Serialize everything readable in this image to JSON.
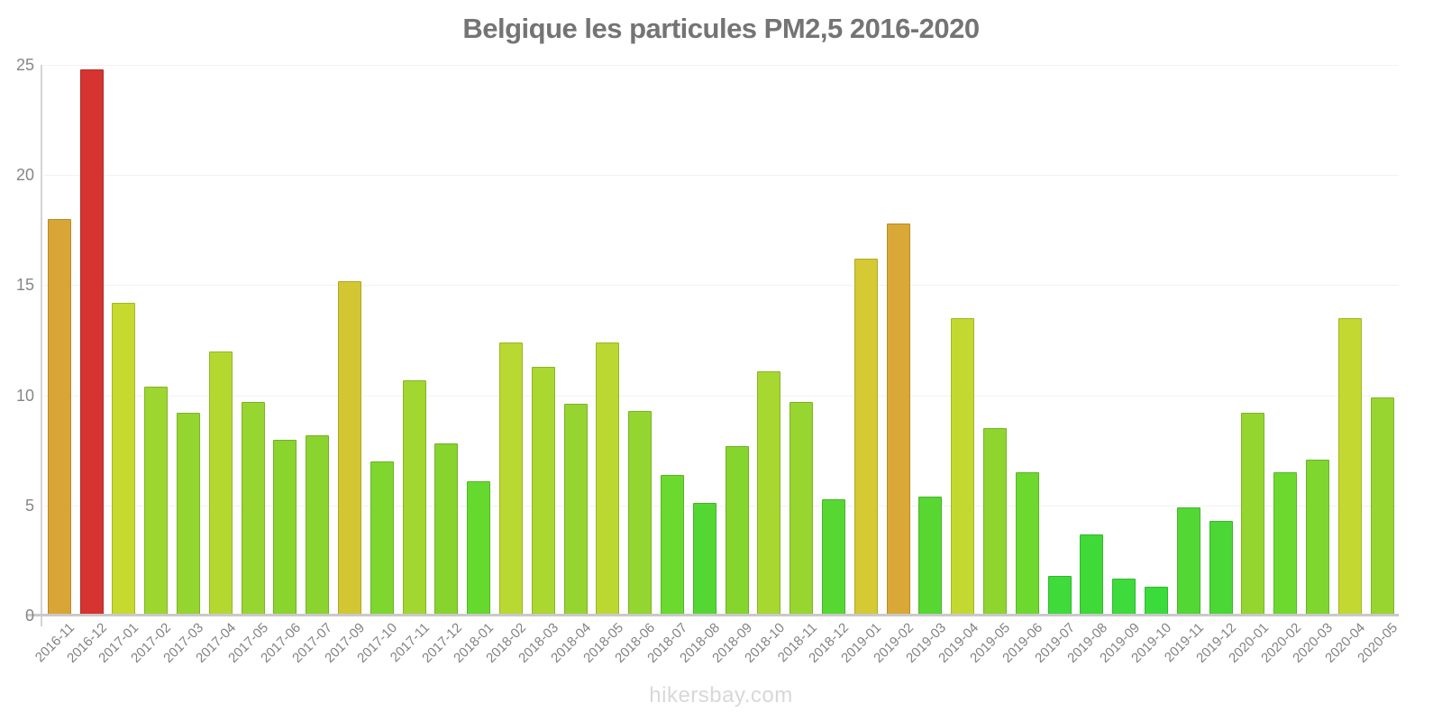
{
  "watermark": "hikersbay.com",
  "colors": {
    "title": "#747474",
    "axis_tick_label": "#868686",
    "x_tick_label": "#828282",
    "x_axis_line": "#c9c9c9",
    "y_axis_line": "#d4d4d4",
    "gridline": "#f2f2f2",
    "watermark": "#d8d8d8",
    "red_high": "#d63431",
    "orange": "#d9a636",
    "yellow": "#d4c833",
    "green_low": "#3edb3b"
  },
  "chart_data": {
    "type": "bar",
    "title": "Belgique les particules PM2,5 2016-2020",
    "xlabel": "",
    "ylabel": "",
    "ylim": [
      0,
      25
    ],
    "y_ticks": [
      0,
      5,
      10,
      15,
      20,
      25
    ],
    "grid": "horizontal",
    "legend": "none",
    "categories": [
      "2016-11",
      "2016-12",
      "2017-01",
      "2017-02",
      "2017-03",
      "2017-04",
      "2017-05",
      "2017-06",
      "2017-07",
      "2017-09",
      "2017-10",
      "2017-11",
      "2017-12",
      "2018-01",
      "2018-02",
      "2018-03",
      "2018-04",
      "2018-05",
      "2018-06",
      "2018-07",
      "2018-08",
      "2018-09",
      "2018-10",
      "2018-11",
      "2018-12",
      "2019-01",
      "2019-02",
      "2019-03",
      "2019-04",
      "2019-05",
      "2019-06",
      "2019-07",
      "2019-08",
      "2019-09",
      "2019-10",
      "2019-11",
      "2019-12",
      "2020-01",
      "2020-02",
      "2020-03",
      "2020-04",
      "2020-05"
    ],
    "values": [
      18.0,
      24.8,
      14.2,
      10.4,
      9.2,
      12.0,
      9.7,
      8.0,
      8.2,
      15.2,
      7.0,
      10.7,
      7.8,
      6.1,
      12.4,
      11.3,
      9.6,
      12.4,
      9.3,
      6.4,
      5.1,
      7.7,
      11.1,
      9.7,
      5.3,
      16.2,
      17.8,
      5.4,
      13.5,
      8.5,
      6.5,
      1.8,
      3.7,
      1.7,
      1.3,
      4.9,
      4.3,
      9.2,
      6.5,
      7.1,
      13.5,
      9.9
    ],
    "bar_colors": [
      "#d9a636",
      "#d63431",
      "#c6d92f",
      "#9ed630",
      "#95d52f",
      "#b4d830",
      "#97d530",
      "#8ad42e",
      "#8bd42f",
      "#d3c633",
      "#7ed62f",
      "#a2d630",
      "#88d42e",
      "#66d92e",
      "#b9d831",
      "#abd731",
      "#96d530",
      "#bad831",
      "#94d52f",
      "#6bd92e",
      "#55d733",
      "#86d42e",
      "#a7d731",
      "#97d530",
      "#57d732",
      "#d5c934",
      "#d9a836",
      "#58d732",
      "#c3d931",
      "#8ed52f",
      "#6dd92e",
      "#3edb3b",
      "#3fd938",
      "#3ddb3b",
      "#3adc3c",
      "#52d734",
      "#4bd735",
      "#95d52f",
      "#6dd92e",
      "#7fd62f",
      "#c3d931",
      "#99d530"
    ]
  }
}
